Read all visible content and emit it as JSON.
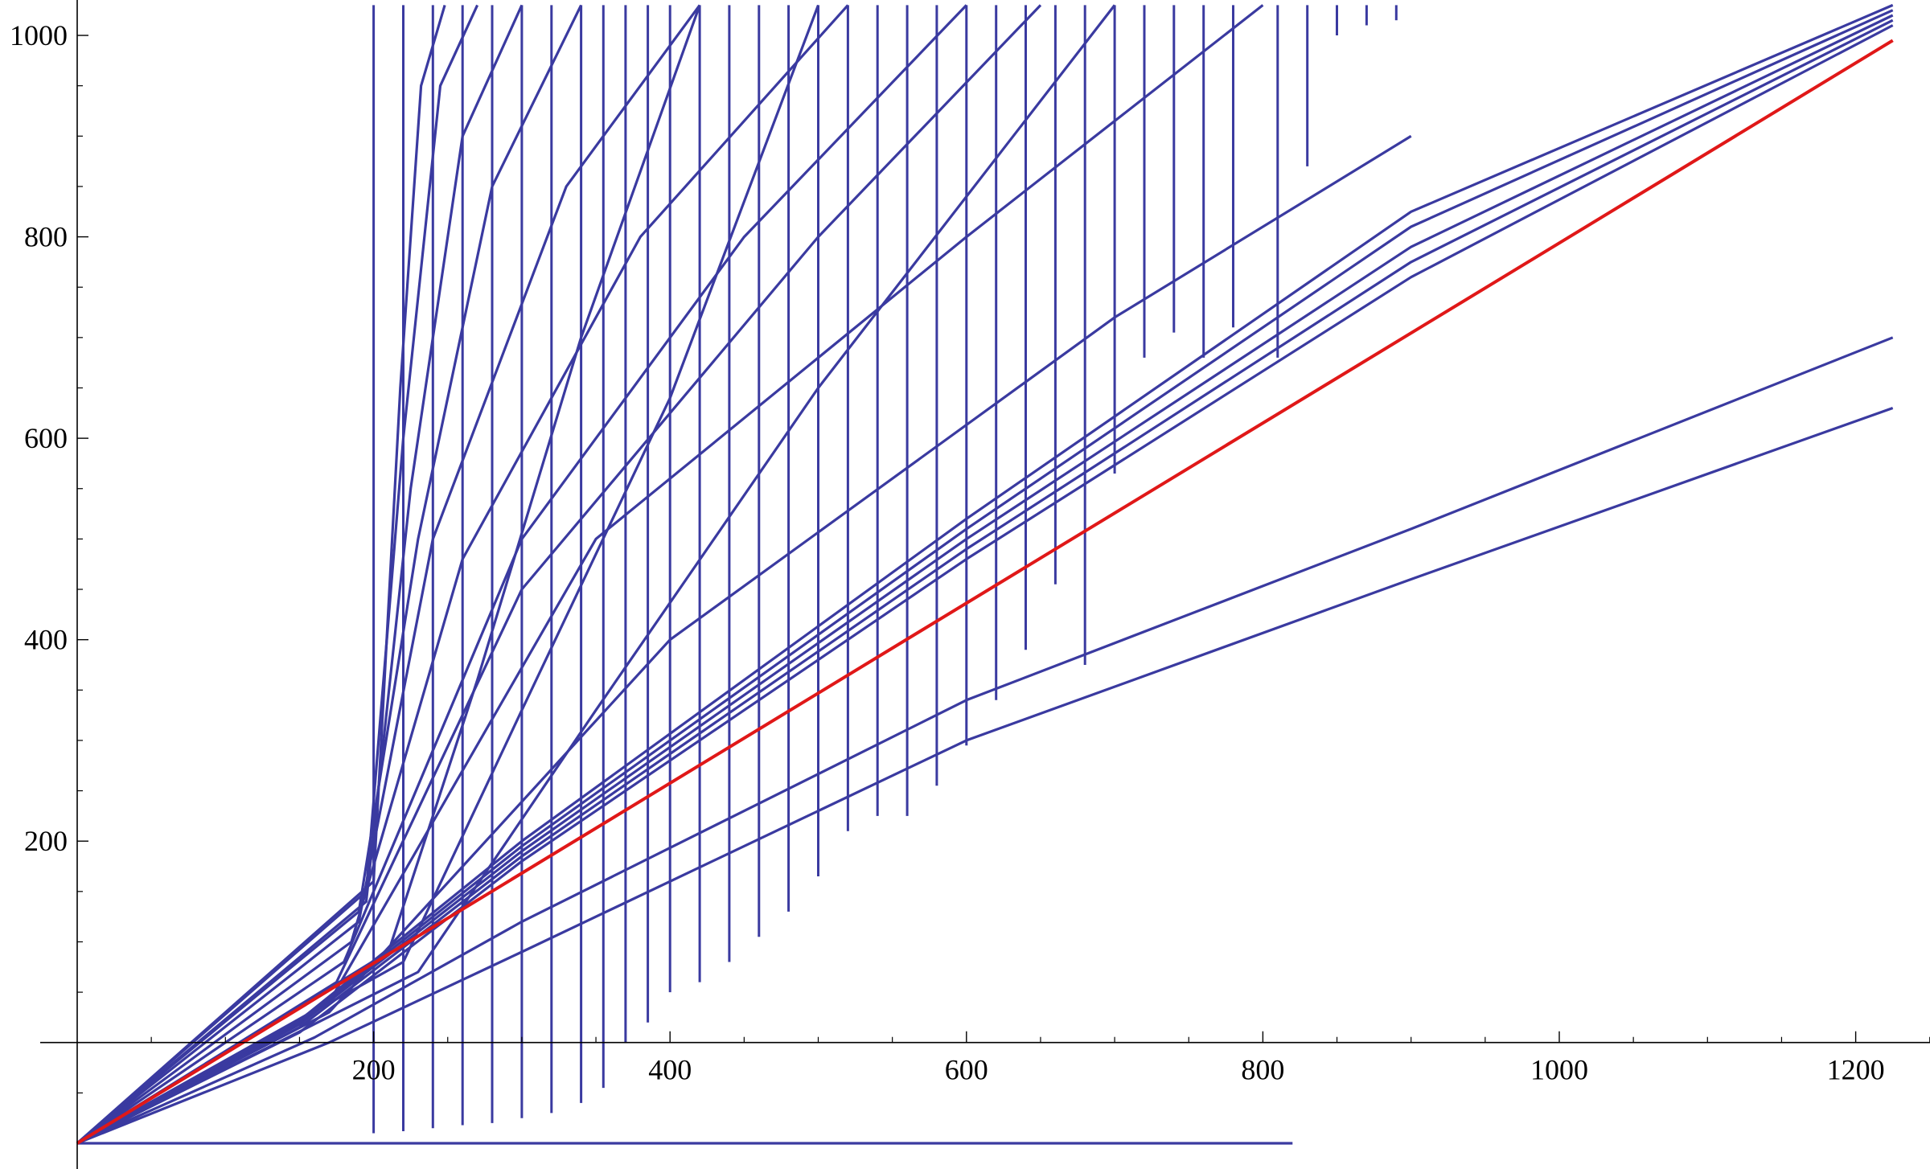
{
  "chart_data": {
    "type": "line",
    "title": "",
    "xlabel": "",
    "ylabel": "",
    "xlim": [
      -25,
      1250
    ],
    "ylim": [
      -100,
      1030
    ],
    "x_ticks": [
      200,
      400,
      600,
      800,
      1000,
      1200
    ],
    "x_tick_labels": [
      "200",
      "400",
      "600",
      "800",
      "1000",
      "1200"
    ],
    "y_ticks": [
      200,
      400,
      600,
      800,
      1000
    ],
    "y_tick_labels": [
      "200",
      "400",
      "600",
      "800",
      "1000"
    ],
    "grid": false,
    "colors": {
      "curves": "#3a3aa0",
      "reference": "#e01818",
      "axes": "#000000"
    },
    "series": [
      {
        "role": "reference",
        "x": [
          0,
          1225
        ],
        "y": [
          -100,
          995
        ]
      },
      {
        "x": [
          0,
          820
        ],
        "y": [
          -100,
          -100
        ]
      },
      {
        "x": [
          0,
          150,
          300,
          600,
          900,
          1225
        ],
        "y": [
          -100,
          10,
          180,
          480,
          760,
          1010
        ]
      },
      {
        "x": [
          0,
          150,
          300,
          600,
          900,
          1225
        ],
        "y": [
          -100,
          15,
          185,
          490,
          775,
          1015
        ]
      },
      {
        "x": [
          0,
          150,
          300,
          600,
          900,
          1225
        ],
        "y": [
          -100,
          18,
          190,
          500,
          790,
          1020
        ]
      },
      {
        "x": [
          0,
          150,
          300,
          600,
          900,
          1225
        ],
        "y": [
          -100,
          20,
          195,
          510,
          810,
          1025
        ]
      },
      {
        "x": [
          0,
          150,
          300,
          600,
          900,
          1225
        ],
        "y": [
          -100,
          22,
          200,
          520,
          825,
          1030
        ]
      },
      {
        "x": [
          0,
          160,
          300,
          600,
          900,
          1225
        ],
        "y": [
          -100,
          5,
          120,
          340,
          510,
          700
        ]
      },
      {
        "x": [
          0,
          170,
          300,
          600,
          900,
          1225
        ],
        "y": [
          -100,
          0,
          90,
          300,
          460,
          630
        ]
      },
      {
        "x": [
          0,
          170,
          400,
          700,
          900
        ],
        "y": [
          -100,
          30,
          400,
          720,
          900
        ]
      },
      {
        "x": [
          0,
          170,
          350,
          600,
          800
        ],
        "y": [
          -100,
          40,
          500,
          800,
          1030
        ]
      },
      {
        "x": [
          0,
          175,
          300,
          500,
          650
        ],
        "y": [
          -100,
          60,
          450,
          800,
          1030
        ]
      },
      {
        "x": [
          0,
          180,
          300,
          450,
          600
        ],
        "y": [
          -100,
          80,
          500,
          800,
          1030
        ]
      },
      {
        "x": [
          0,
          185,
          260,
          380,
          520
        ],
        "y": [
          -100,
          100,
          480,
          800,
          1030
        ]
      },
      {
        "x": [
          0,
          190,
          240,
          330,
          420
        ],
        "y": [
          -100,
          120,
          500,
          850,
          1030
        ]
      },
      {
        "x": [
          0,
          190,
          230,
          280,
          340
        ],
        "y": [
          -100,
          130,
          500,
          850,
          1030
        ]
      },
      {
        "x": [
          0,
          195,
          225,
          260,
          300
        ],
        "y": [
          -100,
          140,
          550,
          900,
          1030
        ]
      },
      {
        "x": [
          0,
          195,
          220,
          245,
          270
        ],
        "y": [
          -100,
          150,
          600,
          950,
          1030
        ]
      },
      {
        "x": [
          0,
          200,
          218,
          232,
          248
        ],
        "y": [
          -100,
          160,
          650,
          950,
          1030
        ]
      },
      {
        "x": [
          0,
          210,
          270,
          340,
          420
        ],
        "y": [
          -100,
          90,
          360,
          700,
          1030
        ]
      },
      {
        "x": [
          0,
          220,
          300,
          400,
          500
        ],
        "y": [
          -100,
          80,
          330,
          640,
          1030
        ]
      },
      {
        "x": [
          0,
          230,
          350,
          500,
          700
        ],
        "y": [
          -100,
          70,
          330,
          650,
          1030
        ]
      }
    ],
    "drops": [
      [
        200,
        -90
      ],
      [
        220,
        -88
      ],
      [
        240,
        -85
      ],
      [
        260,
        -82
      ],
      [
        280,
        -80
      ],
      [
        300,
        -75
      ],
      [
        320,
        -70
      ],
      [
        340,
        -60
      ],
      [
        355,
        -45
      ],
      [
        370,
        0
      ],
      [
        385,
        20
      ],
      [
        400,
        50
      ],
      [
        420,
        60
      ],
      [
        440,
        80
      ],
      [
        460,
        105
      ],
      [
        480,
        130
      ],
      [
        500,
        165
      ],
      [
        520,
        210
      ],
      [
        540,
        225
      ],
      [
        560,
        225
      ],
      [
        580,
        255
      ],
      [
        600,
        295
      ],
      [
        620,
        340
      ],
      [
        640,
        390
      ],
      [
        660,
        455
      ],
      [
        680,
        375
      ],
      [
        700,
        565
      ],
      [
        720,
        680
      ],
      [
        740,
        705
      ],
      [
        760,
        680
      ],
      [
        780,
        710
      ],
      [
        810,
        680
      ],
      [
        830,
        870
      ],
      [
        850,
        1000
      ],
      [
        870,
        1010
      ],
      [
        890,
        1015
      ]
    ]
  }
}
